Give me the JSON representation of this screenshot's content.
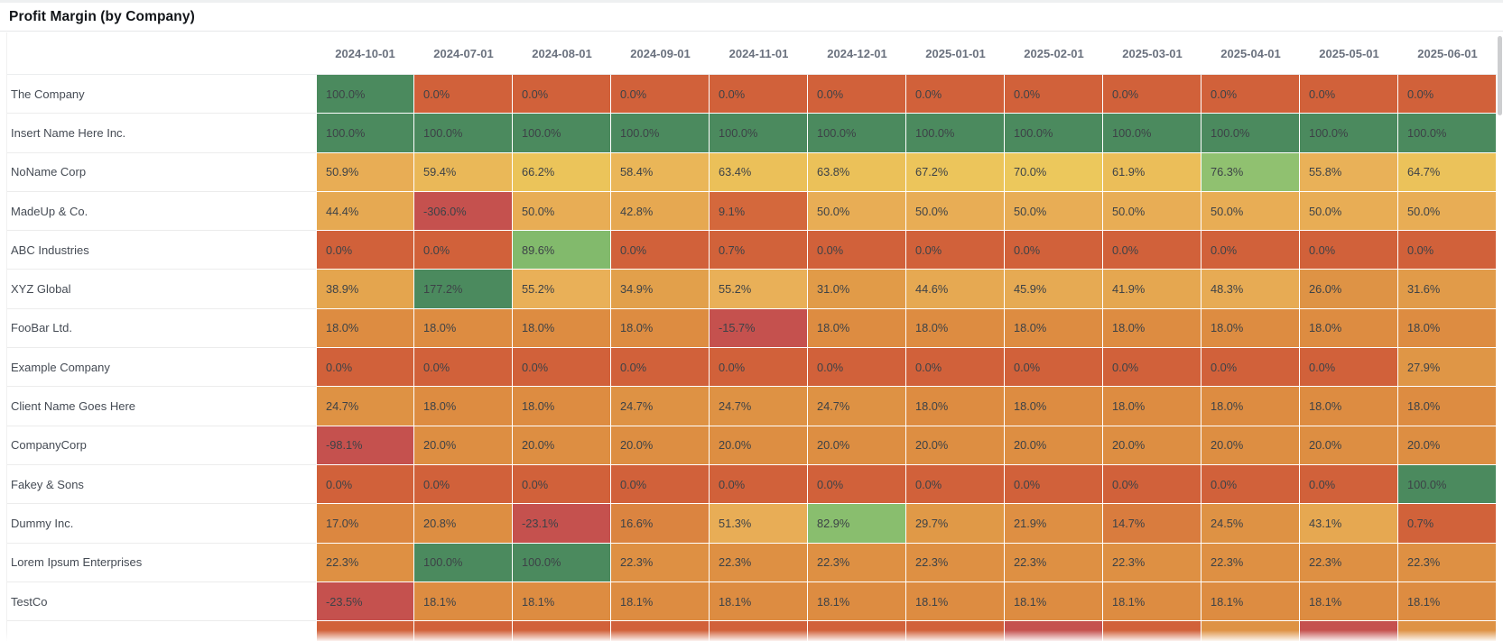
{
  "title": "Profit Margin (by Company)",
  "chart_data": {
    "type": "heatmap",
    "value_format": "percent_one_decimal",
    "columns": [
      "2024-10-01",
      "2024-07-01",
      "2024-08-01",
      "2024-09-01",
      "2024-11-01",
      "2024-12-01",
      "2025-01-01",
      "2025-02-01",
      "2025-03-01",
      "2025-04-01",
      "2025-05-01",
      "2025-06-01"
    ],
    "rows": [
      {
        "name": "The Company",
        "values": [
          100.0,
          0.0,
          0.0,
          0.0,
          0.0,
          0.0,
          0.0,
          0.0,
          0.0,
          0.0,
          0.0,
          0.0
        ]
      },
      {
        "name": "Insert Name Here Inc.",
        "values": [
          100.0,
          100.0,
          100.0,
          100.0,
          100.0,
          100.0,
          100.0,
          100.0,
          100.0,
          100.0,
          100.0,
          100.0
        ]
      },
      {
        "name": "NoName Corp",
        "values": [
          50.9,
          59.4,
          66.2,
          58.4,
          63.4,
          63.8,
          67.2,
          70.0,
          61.9,
          76.3,
          55.8,
          64.7
        ]
      },
      {
        "name": "MadeUp & Co.",
        "values": [
          44.4,
          -306.0,
          50.0,
          42.8,
          9.1,
          50.0,
          50.0,
          50.0,
          50.0,
          50.0,
          50.0,
          50.0
        ]
      },
      {
        "name": "ABC Industries",
        "values": [
          0.0,
          0.0,
          89.6,
          0.0,
          0.7,
          0.0,
          0.0,
          0.0,
          0.0,
          0.0,
          0.0,
          0.0
        ]
      },
      {
        "name": "XYZ Global",
        "values": [
          38.9,
          177.2,
          55.2,
          34.9,
          55.2,
          31.0,
          44.6,
          45.9,
          41.9,
          48.3,
          26.0,
          31.6
        ]
      },
      {
        "name": "FooBar Ltd.",
        "values": [
          18.0,
          18.0,
          18.0,
          18.0,
          -15.7,
          18.0,
          18.0,
          18.0,
          18.0,
          18.0,
          18.0,
          18.0
        ]
      },
      {
        "name": "Example Company",
        "values": [
          0.0,
          0.0,
          0.0,
          0.0,
          0.0,
          0.0,
          0.0,
          0.0,
          0.0,
          0.0,
          0.0,
          27.9
        ]
      },
      {
        "name": "Client Name Goes Here",
        "values": [
          24.7,
          18.0,
          18.0,
          24.7,
          24.7,
          24.7,
          18.0,
          18.0,
          18.0,
          18.0,
          18.0,
          18.0
        ]
      },
      {
        "name": "CompanyCorp",
        "values": [
          -98.1,
          20.0,
          20.0,
          20.0,
          20.0,
          20.0,
          20.0,
          20.0,
          20.0,
          20.0,
          20.0,
          20.0
        ]
      },
      {
        "name": "Fakey & Sons",
        "values": [
          0.0,
          0.0,
          0.0,
          0.0,
          0.0,
          0.0,
          0.0,
          0.0,
          0.0,
          0.0,
          0.0,
          100.0
        ]
      },
      {
        "name": "Dummy Inc.",
        "values": [
          17.0,
          20.8,
          -23.1,
          16.6,
          51.3,
          82.9,
          29.7,
          21.9,
          14.7,
          24.5,
          43.1,
          0.7
        ]
      },
      {
        "name": "Lorem Ipsum Enterprises",
        "values": [
          22.3,
          100.0,
          100.0,
          22.3,
          22.3,
          22.3,
          22.3,
          22.3,
          22.3,
          22.3,
          22.3,
          22.3
        ]
      },
      {
        "name": "TestCo",
        "values": [
          -23.5,
          18.1,
          18.1,
          18.1,
          18.1,
          18.1,
          18.1,
          18.1,
          18.1,
          18.1,
          18.1,
          18.1
        ]
      }
    ],
    "partial_row_cut_off": {
      "colors": [
        "#d1613a",
        "#d1613a",
        "#d1613a",
        "#d1613a",
        "#d1613a",
        "#d1613a",
        "#d1613a",
        "#c5514e",
        "#d1613a",
        "#de9244",
        "#c5514e",
        "#de9244"
      ]
    },
    "color_scale": {
      "stops": [
        [
          -400,
          "#c5514e"
        ],
        [
          -12,
          "#c5514e"
        ],
        [
          0,
          "#d1613a"
        ],
        [
          10,
          "#d4693c"
        ],
        [
          16,
          "#da813f"
        ],
        [
          18,
          "#dd8c41"
        ],
        [
          25,
          "#de9244"
        ],
        [
          32,
          "#e19c49"
        ],
        [
          40,
          "#e5a64f"
        ],
        [
          48,
          "#e7ab54"
        ],
        [
          56,
          "#e9b158"
        ],
        [
          63,
          "#ebc059"
        ],
        [
          70,
          "#ecc85c"
        ],
        [
          73,
          "#c8cd66"
        ],
        [
          76,
          "#90c170"
        ],
        [
          90,
          "#82ba6c"
        ],
        [
          100,
          "#4b8a5e"
        ],
        [
          1000,
          "#4b8a5e"
        ]
      ]
    },
    "layout": {
      "legend": "none",
      "grid_line_color": "#ffffff",
      "row_label_column_first": true
    }
  },
  "colors": {
    "title_text": "#121519",
    "header_text": "#6a717e",
    "row_label_text": "#454b54",
    "cell_text": "#3d4247",
    "divider": "#e6e8ea",
    "scrollbar_thumb": "#cdced0"
  }
}
